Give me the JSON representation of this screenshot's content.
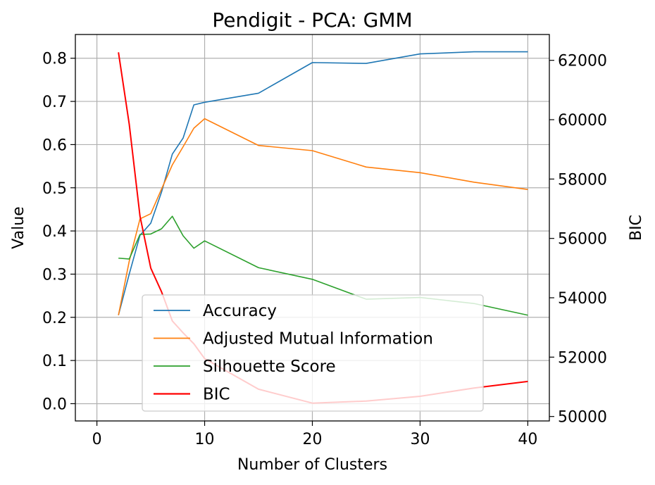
{
  "chart_data": {
    "type": "line",
    "title": "Pendigit - PCA: GMM",
    "xlabel": "Number of Clusters",
    "ylabel": "Value",
    "y2label": "BIC",
    "xlim": [
      -2,
      42
    ],
    "ylim": [
      -0.04,
      0.855
    ],
    "y2lim": [
      49850,
      62870
    ],
    "xticks": [
      0,
      10,
      20,
      30,
      40
    ],
    "yticks": [
      0.0,
      0.1,
      0.2,
      0.3,
      0.4,
      0.5,
      0.6,
      0.7,
      0.8
    ],
    "y2ticks": [
      50000,
      52000,
      54000,
      56000,
      58000,
      60000,
      62000
    ],
    "grid": true,
    "legend_position": "lower-center",
    "x": [
      2,
      3,
      4,
      5,
      6,
      7,
      8,
      9,
      10,
      15,
      20,
      25,
      30,
      35,
      40
    ],
    "series": [
      {
        "name": "Accuracy",
        "axis": "left",
        "color": "#1f77b4",
        "values": [
          0.205,
          0.3,
          0.39,
          0.418,
          0.49,
          0.578,
          0.615,
          0.692,
          0.698,
          0.719,
          0.79,
          0.788,
          0.81,
          0.815,
          0.815
        ]
      },
      {
        "name": "Adjusted Mutual Information",
        "axis": "left",
        "color": "#ff7f0e",
        "values": [
          0.205,
          0.33,
          0.428,
          0.44,
          0.497,
          0.553,
          0.595,
          0.638,
          0.66,
          0.598,
          0.586,
          0.548,
          0.535,
          0.513,
          0.496
        ]
      },
      {
        "name": "Silhouette Score",
        "axis": "left",
        "color": "#2ca02c",
        "values": [
          0.337,
          0.335,
          0.392,
          0.393,
          0.405,
          0.434,
          0.389,
          0.36,
          0.377,
          0.315,
          0.288,
          0.242,
          0.246,
          0.232,
          0.205
        ]
      },
      {
        "name": "BIC",
        "axis": "right",
        "color": "#ff0000",
        "values": [
          62270,
          59850,
          56750,
          55000,
          54200,
          53220,
          52820,
          52450,
          51950,
          50920,
          50450,
          50520,
          50680,
          50960,
          51180
        ]
      }
    ]
  }
}
